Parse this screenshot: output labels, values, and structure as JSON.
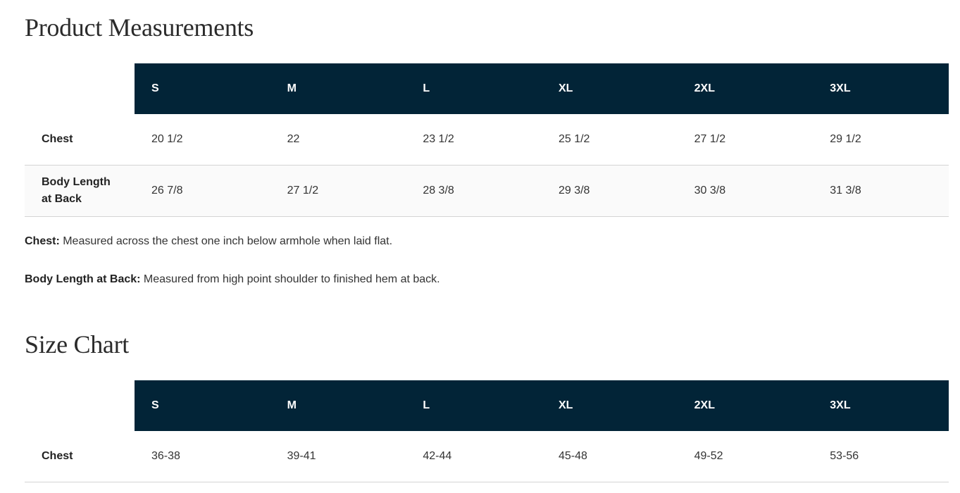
{
  "measurements": {
    "title": "Product Measurements",
    "sizes": [
      "S",
      "M",
      "L",
      "XL",
      "2XL",
      "3XL"
    ],
    "rows": [
      {
        "label": "Chest",
        "values": [
          "20 1/2",
          "22",
          "23 1/2",
          "25 1/2",
          "27 1/2",
          "29 1/2"
        ]
      },
      {
        "label": "Body Length at Back",
        "values": [
          "26 7/8",
          "27 1/2",
          "28 3/8",
          "29 3/8",
          "30 3/8",
          "31 3/8"
        ]
      }
    ],
    "notes": [
      {
        "term": "Chest:",
        "text": " Measured across the chest one inch below armhole when laid flat."
      },
      {
        "term": "Body Length at Back:",
        "text": " Measured from high point shoulder to finished hem at back."
      }
    ]
  },
  "size_chart": {
    "title": "Size Chart",
    "sizes": [
      "S",
      "M",
      "L",
      "XL",
      "2XL",
      "3XL"
    ],
    "rows": [
      {
        "label": "Chest",
        "values": [
          "36-38",
          "39-41",
          "42-44",
          "45-48",
          "49-52",
          "53-56"
        ]
      }
    ]
  },
  "colors": {
    "header_bg": "#022437",
    "header_text": "#ffffff",
    "alt_row": "#fafafa"
  }
}
